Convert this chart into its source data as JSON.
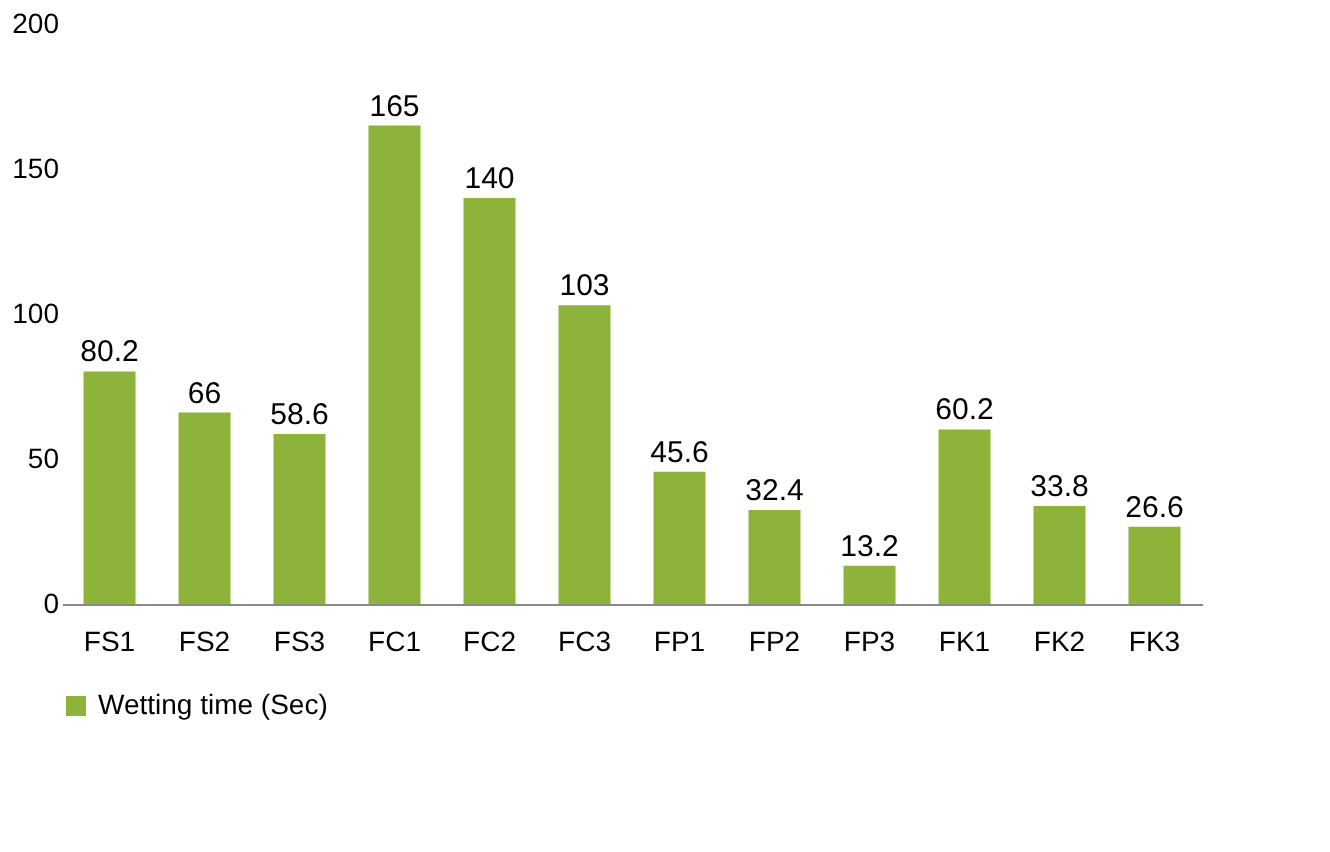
{
  "chart_data": {
    "type": "bar",
    "categories": [
      "FS1",
      "FS2",
      "FS3",
      "FC1",
      "FC2",
      "FC3",
      "FP1",
      "FP2",
      "FP3",
      "FK1",
      "FK2",
      "FK3"
    ],
    "series": [
      {
        "name": "Wetting time (Sec)",
        "color": "#8db33a",
        "values": [
          80.2,
          66,
          58.6,
          165,
          140,
          103,
          45.6,
          32.4,
          13.2,
          60.2,
          33.8,
          26.6
        ]
      }
    ],
    "ylim": [
      0,
      200
    ],
    "yticks": [
      0,
      50,
      100,
      150,
      200
    ],
    "grid": false,
    "legend": "bottom",
    "data_labels": true
  }
}
